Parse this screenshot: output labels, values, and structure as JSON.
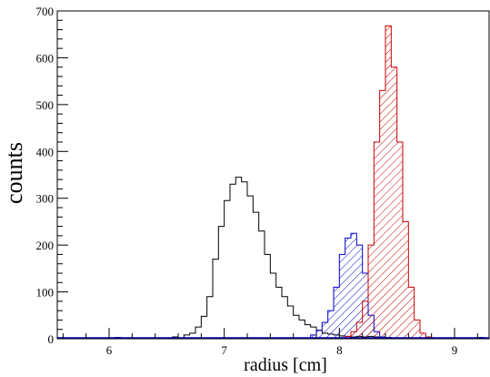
{
  "chart_data": {
    "type": "histogram",
    "xlabel": "radius [cm]",
    "ylabel": "counts",
    "xlim": [
      5.55,
      9.3
    ],
    "ylim": [
      0,
      700
    ],
    "bin_width": 0.05,
    "x_ticks": [
      "6",
      "7",
      "8",
      "9"
    ],
    "x_tick_values": [
      6,
      7,
      8,
      9
    ],
    "y_ticks": [
      "0",
      "100",
      "200",
      "300",
      "400",
      "500",
      "600",
      "700"
    ],
    "y_tick_values": [
      0,
      100,
      200,
      300,
      400,
      500,
      600,
      700
    ],
    "grid": false,
    "legend": "none",
    "series": [
      {
        "style": "outline",
        "color": "#000000",
        "bins": [
          [
            6.05,
            3
          ],
          [
            6.55,
            4
          ],
          [
            6.65,
            8
          ],
          [
            6.7,
            12
          ],
          [
            6.75,
            25
          ],
          [
            6.8,
            48
          ],
          [
            6.85,
            90
          ],
          [
            6.9,
            170
          ],
          [
            6.95,
            240
          ],
          [
            7.0,
            295
          ],
          [
            7.05,
            330
          ],
          [
            7.1,
            345
          ],
          [
            7.15,
            335
          ],
          [
            7.2,
            305
          ],
          [
            7.25,
            270
          ],
          [
            7.3,
            230
          ],
          [
            7.35,
            180
          ],
          [
            7.4,
            140
          ],
          [
            7.45,
            110
          ],
          [
            7.5,
            90
          ],
          [
            7.55,
            70
          ],
          [
            7.6,
            50
          ],
          [
            7.65,
            40
          ],
          [
            7.7,
            30
          ],
          [
            7.75,
            25
          ],
          [
            7.8,
            18
          ],
          [
            7.85,
            12
          ],
          [
            7.9,
            10
          ],
          [
            7.95,
            8
          ],
          [
            8.0,
            6
          ],
          [
            8.05,
            5
          ],
          [
            8.1,
            4
          ],
          [
            8.15,
            5
          ],
          [
            8.2,
            4
          ],
          [
            8.25,
            5
          ],
          [
            8.3,
            4
          ],
          [
            8.35,
            3
          ],
          [
            8.4,
            3
          ],
          [
            8.45,
            2
          ],
          [
            8.5,
            2
          ],
          [
            9.2,
            3
          ]
        ]
      },
      {
        "style": "hatched",
        "color": "#0000cc",
        "bins": [
          [
            7.75,
            8
          ],
          [
            7.8,
            18
          ],
          [
            7.85,
            35
          ],
          [
            7.9,
            60
          ],
          [
            7.95,
            110
          ],
          [
            8.0,
            180
          ],
          [
            8.05,
            215
          ],
          [
            8.1,
            225
          ],
          [
            8.15,
            200
          ],
          [
            8.2,
            140
          ],
          [
            8.25,
            50
          ],
          [
            8.3,
            15
          ],
          [
            8.35,
            4
          ]
        ]
      },
      {
        "style": "hatched",
        "color": "#cc0000",
        "bins": [
          [
            8.05,
            5
          ],
          [
            8.1,
            15
          ],
          [
            8.15,
            35
          ],
          [
            8.2,
            80
          ],
          [
            8.25,
            200
          ],
          [
            8.3,
            420
          ],
          [
            8.35,
            530
          ],
          [
            8.4,
            668
          ],
          [
            8.45,
            580
          ],
          [
            8.5,
            420
          ],
          [
            8.55,
            250
          ],
          [
            8.6,
            110
          ],
          [
            8.65,
            40
          ],
          [
            8.7,
            12
          ],
          [
            8.75,
            4
          ]
        ]
      }
    ]
  }
}
